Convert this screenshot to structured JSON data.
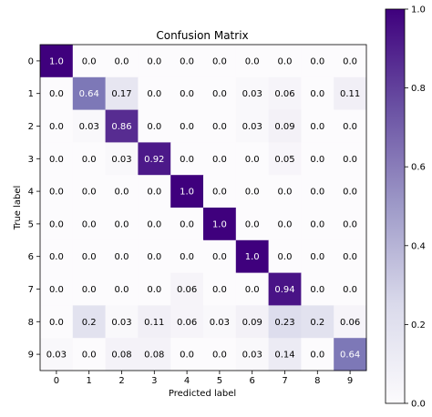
{
  "chart_data": {
    "type": "heatmap",
    "title": "Confusion Matrix",
    "xlabel": "Predicted label",
    "ylabel": "True label",
    "x_tick_labels": [
      "0",
      "1",
      "2",
      "3",
      "4",
      "5",
      "6",
      "7",
      "8",
      "9"
    ],
    "y_tick_labels": [
      "0",
      "1",
      "2",
      "3",
      "4",
      "5",
      "6",
      "7",
      "8",
      "9"
    ],
    "cell_labels": [
      [
        "1.0",
        "0.0",
        "0.0",
        "0.0",
        "0.0",
        "0.0",
        "0.0",
        "0.0",
        "0.0",
        "0.0"
      ],
      [
        "0.0",
        "0.64",
        "0.17",
        "0.0",
        "0.0",
        "0.0",
        "0.03",
        "0.06",
        "0.0",
        "0.11"
      ],
      [
        "0.0",
        "0.03",
        "0.86",
        "0.0",
        "0.0",
        "0.0",
        "0.03",
        "0.09",
        "0.0",
        "0.0"
      ],
      [
        "0.0",
        "0.0",
        "0.03",
        "0.92",
        "0.0",
        "0.0",
        "0.0",
        "0.05",
        "0.0",
        "0.0"
      ],
      [
        "0.0",
        "0.0",
        "0.0",
        "0.0",
        "1.0",
        "0.0",
        "0.0",
        "0.0",
        "0.0",
        "0.0"
      ],
      [
        "0.0",
        "0.0",
        "0.0",
        "0.0",
        "0.0",
        "1.0",
        "0.0",
        "0.0",
        "0.0",
        "0.0"
      ],
      [
        "0.0",
        "0.0",
        "0.0",
        "0.0",
        "0.0",
        "0.0",
        "1.0",
        "0.0",
        "0.0",
        "0.0"
      ],
      [
        "0.0",
        "0.0",
        "0.0",
        "0.0",
        "0.06",
        "0.0",
        "0.0",
        "0.94",
        "0.0",
        "0.0"
      ],
      [
        "0.0",
        "0.2",
        "0.03",
        "0.11",
        "0.06",
        "0.03",
        "0.09",
        "0.23",
        "0.2",
        "0.06"
      ],
      [
        "0.03",
        "0.0",
        "0.08",
        "0.08",
        "0.0",
        "0.0",
        "0.03",
        "0.14",
        "0.0",
        "0.64"
      ]
    ],
    "values": [
      [
        1.0,
        0.0,
        0.0,
        0.0,
        0.0,
        0.0,
        0.0,
        0.0,
        0.0,
        0.0
      ],
      [
        0.0,
        0.64,
        0.17,
        0.0,
        0.0,
        0.0,
        0.03,
        0.06,
        0.0,
        0.11
      ],
      [
        0.0,
        0.03,
        0.86,
        0.0,
        0.0,
        0.0,
        0.03,
        0.09,
        0.0,
        0.0
      ],
      [
        0.0,
        0.0,
        0.03,
        0.92,
        0.0,
        0.0,
        0.0,
        0.05,
        0.0,
        0.0
      ],
      [
        0.0,
        0.0,
        0.0,
        0.0,
        1.0,
        0.0,
        0.0,
        0.0,
        0.0,
        0.0
      ],
      [
        0.0,
        0.0,
        0.0,
        0.0,
        0.0,
        1.0,
        0.0,
        0.0,
        0.0,
        0.0
      ],
      [
        0.0,
        0.0,
        0.0,
        0.0,
        0.0,
        0.0,
        1.0,
        0.0,
        0.0,
        0.0
      ],
      [
        0.0,
        0.0,
        0.0,
        0.0,
        0.06,
        0.0,
        0.0,
        0.94,
        0.0,
        0.0
      ],
      [
        0.0,
        0.2,
        0.03,
        0.11,
        0.06,
        0.03,
        0.09,
        0.23,
        0.2,
        0.06
      ],
      [
        0.03,
        0.0,
        0.08,
        0.08,
        0.0,
        0.0,
        0.03,
        0.14,
        0.0,
        0.64
      ]
    ],
    "colorscale": "Purples",
    "colorbar": {
      "range": [
        0.0,
        1.0
      ],
      "tick_values": [
        0.0,
        0.2,
        0.4,
        0.6,
        0.8,
        1.0
      ],
      "tick_labels": [
        "0.0",
        "0.2",
        "0.4",
        "0.6",
        "0.8",
        "1.0"
      ]
    },
    "text_threshold": 0.5,
    "grid": false
  }
}
